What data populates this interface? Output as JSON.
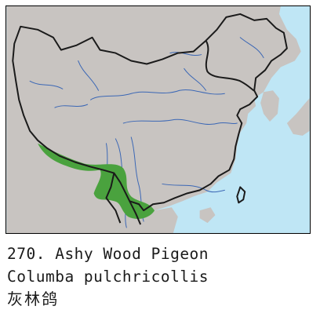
{
  "map": {
    "colors": {
      "sea": "#bfe6f5",
      "land": "#c8c4c1",
      "border": "#1a1a1a",
      "river": "#3b67b5",
      "range": "#4aa23e"
    },
    "legend": []
  },
  "caption": {
    "number_title": "270. Ashy Wood Pigeon",
    "scientific_name": "Columba pulchricollis",
    "chinese_name": "灰林鸽"
  }
}
